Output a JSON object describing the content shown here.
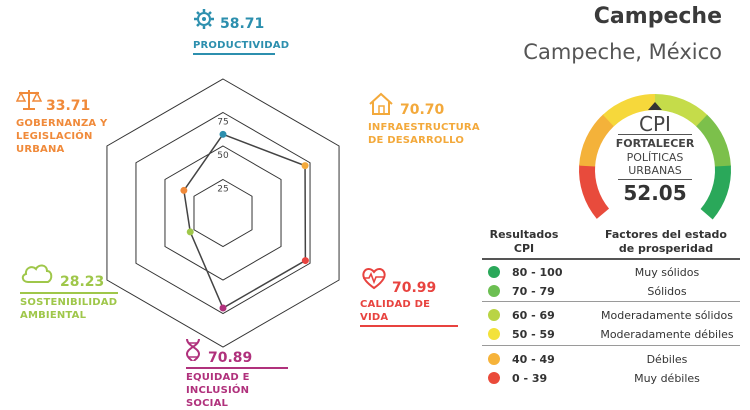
{
  "city": {
    "name": "Campeche",
    "location": "Campeche, México"
  },
  "gauge": {
    "acronym": "CPI",
    "line1": "FORTALECER",
    "line2": "POLÍTICAS",
    "line3": "URBANAS",
    "value": "52.05",
    "colors": [
      "#e84b3c",
      "#f4b23a",
      "#f6d83b",
      "#c5dc4a",
      "#7cc04b",
      "#2aa85a"
    ]
  },
  "chart_data": {
    "type": "radar",
    "max": 100,
    "rings": [
      25,
      50,
      75,
      100
    ],
    "ring_labels": [
      "25",
      "50",
      "75"
    ],
    "dimensions": [
      {
        "key": "productividad",
        "label": "PRODUCTIVIDAD",
        "value": 58.71,
        "value_text": "58.71",
        "color": "#2c8fae",
        "icon": "gear-icon"
      },
      {
        "key": "infraestructura",
        "label": "INFRAESTRUCTURA DE DESARROLLO",
        "value": 70.7,
        "value_text": "70.70",
        "color": "#f3a93b",
        "icon": "house-icon"
      },
      {
        "key": "calidad",
        "label": "CALIDAD DE VIDA",
        "value": 70.99,
        "value_text": "70.99",
        "color": "#e8433f",
        "icon": "heart-pulse-icon"
      },
      {
        "key": "equidad",
        "label": "EQUIDAD E INCLUSIÓN SOCIAL",
        "value": 70.89,
        "value_text": "70.89",
        "color": "#b0317c",
        "icon": "dna-icon"
      },
      {
        "key": "sostenibilidad",
        "label": "SOSTENIBILIDAD AMBIENTAL",
        "value": 28.23,
        "value_text": "28.23",
        "color": "#9fc74a",
        "icon": "cloud-icon"
      },
      {
        "key": "gobernanza",
        "label": "GOBERNANZA Y LEGISLACIÓN URBANA",
        "value": 33.71,
        "value_text": "33.71",
        "color": "#f08a3a",
        "icon": "scales-icon"
      }
    ]
  },
  "table": {
    "header_left": "Resultados CPI",
    "header_right": "Factores del estado de prosperidad",
    "rows": [
      {
        "range": "80 - 100",
        "label": "Muy sólidos",
        "color": "#2aa85a"
      },
      {
        "range": "70 - 79",
        "label": "Sólidos",
        "color": "#6cbf52"
      },
      {
        "range": "60 - 69",
        "label": "Moderadamente sólidos",
        "color": "#b9d444"
      },
      {
        "range": "50 - 59",
        "label": "Moderadamente débiles",
        "color": "#f3e23a"
      },
      {
        "range": "40 - 49",
        "label": "Débiles",
        "color": "#f6b33a"
      },
      {
        "range": "0 - 39",
        "label": "Muy débiles",
        "color": "#ea4a3a"
      }
    ]
  }
}
